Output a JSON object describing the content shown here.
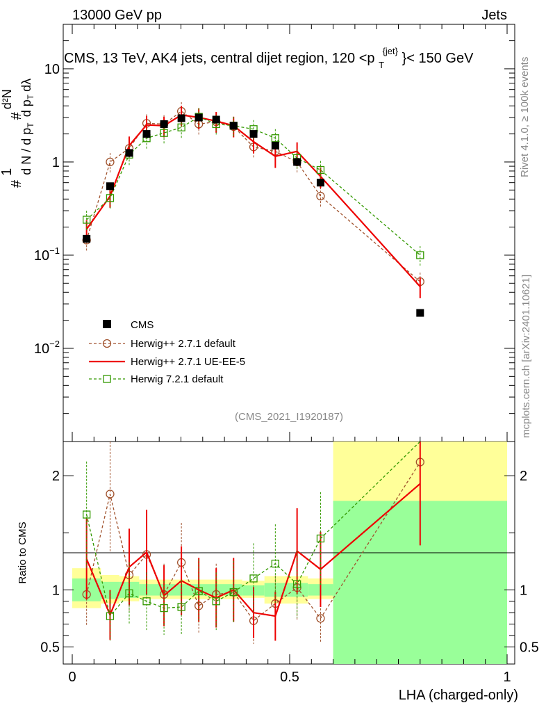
{
  "header": {
    "energy": "13000 GeV pp",
    "category": "Jets"
  },
  "side": {
    "rivet": "Rivet 4.1.0, ≥ 100k events",
    "mcplots": "mcplots.cern.ch [arXiv:2401.10621]"
  },
  "title_main": "CMS, 13 TeV, AK4 jets, central dijet region, 120 <p",
  "title_sub": "T",
  "title_sup": "{jet}",
  "title_tail": "}< 150 GeV",
  "analysis_tag": "(CMS_2021_I1920187)",
  "ylabel_main": "# 1/dN/dpT # d²N/dpT dλ",
  "ylabel_ratio": "Ratio to CMS",
  "xlabel": "LHA (charged-only)",
  "legend": [
    {
      "label": "CMS",
      "color": "#000000"
    },
    {
      "label": "Herwig++ 2.7.1 default",
      "color": "#a0522d"
    },
    {
      "label": "Herwig++ 2.7.1 UE-EE-5",
      "color": "#ee0000"
    },
    {
      "label": "Herwig 7.2.1 default",
      "color": "#339900"
    }
  ],
  "ticks": {
    "main_y": [
      "10",
      "1",
      "10",
      "10"
    ],
    "main_y_exp": [
      "",
      "",
      "−1",
      "−2"
    ],
    "ratio_y": [
      "2",
      "1",
      "0.5"
    ],
    "x": [
      "0",
      "0.5",
      "1"
    ]
  },
  "chart_data": {
    "type": "line",
    "xlabel": "LHA (charged-only)",
    "ylabel": "1/dN/dpT d²N/dpT dλ",
    "xlim": [
      0,
      1
    ],
    "ylim_log": [
      0.001,
      30
    ],
    "ratio_ylim": [
      0.35,
      2.3
    ],
    "x": [
      0.033,
      0.087,
      0.131,
      0.171,
      0.211,
      0.251,
      0.291,
      0.331,
      0.371,
      0.417,
      0.467,
      0.517,
      0.571,
      0.8
    ],
    "bin_edges": [
      0.0,
      0.066,
      0.108,
      0.154,
      0.19,
      0.232,
      0.271,
      0.311,
      0.351,
      0.391,
      0.442,
      0.492,
      0.542,
      0.6,
      1.0
    ],
    "series": [
      {
        "name": "CMS",
        "values": [
          0.15,
          0.55,
          1.25,
          2.0,
          2.55,
          2.95,
          3.0,
          2.85,
          2.45,
          2.0,
          1.5,
          1.0,
          0.6,
          0.024
        ]
      },
      {
        "name": "Herwig++ 2.7.1 default",
        "values": [
          0.145,
          1.0,
          1.4,
          2.6,
          2.55,
          3.5,
          2.55,
          2.7,
          2.4,
          1.45,
          1.3,
          1.0,
          0.43,
          0.052
        ],
        "ratio": [
          0.96,
          1.84,
          1.13,
          1.31,
          0.96,
          1.24,
          0.86,
          0.96,
          0.98,
          0.73,
          0.88,
          1.02,
          0.75,
          2.12
        ]
      },
      {
        "name": "Herwig++ 2.7.1 UE-EE-5",
        "values": [
          0.19,
          0.43,
          1.5,
          2.5,
          2.45,
          3.2,
          3.0,
          2.75,
          2.45,
          1.65,
          1.15,
          1.3,
          0.7,
          0.046
        ],
        "ratio": [
          1.27,
          0.78,
          1.2,
          1.33,
          0.95,
          1.08,
          1.0,
          0.93,
          1.0,
          0.8,
          0.77,
          1.34,
          1.18,
          1.93
        ]
      },
      {
        "name": "Herwig 7.2.1 default",
        "values": [
          0.24,
          0.41,
          1.2,
          1.8,
          2.05,
          2.35,
          3.05,
          2.55,
          2.45,
          2.25,
          1.8,
          1.1,
          0.82,
          0.1
        ],
        "ratio": [
          1.66,
          0.77,
          0.97,
          0.9,
          0.84,
          0.85,
          0.99,
          0.9,
          0.98,
          1.1,
          1.23,
          1.05,
          1.45,
          4.16
        ]
      }
    ],
    "ratio_bands": [
      {
        "x0": 0.0,
        "x1": 0.066,
        "yellow": [
          0.84,
          1.19
        ],
        "green": [
          0.9,
          1.1
        ]
      },
      {
        "x0": 0.066,
        "x1": 0.108,
        "yellow": [
          0.88,
          1.13
        ],
        "green": [
          0.92,
          1.07
        ]
      },
      {
        "x0": 0.108,
        "x1": 0.154,
        "yellow": [
          0.9,
          1.12
        ],
        "green": [
          0.93,
          1.07
        ]
      },
      {
        "x0": 0.154,
        "x1": 0.391,
        "yellow": [
          0.92,
          1.09
        ],
        "green": [
          0.95,
          1.05
        ]
      },
      {
        "x0": 0.391,
        "x1": 0.442,
        "yellow": [
          0.93,
          1.08
        ],
        "green": [
          0.95,
          1.04
        ]
      },
      {
        "x0": 0.442,
        "x1": 0.542,
        "yellow": [
          0.88,
          1.12
        ],
        "green": [
          0.94,
          1.06
        ]
      },
      {
        "x0": 0.542,
        "x1": 0.6,
        "yellow": [
          0.92,
          1.1
        ],
        "green": [
          0.95,
          1.05
        ]
      },
      {
        "x0": 0.6,
        "x1": 1.0,
        "yellow": [
          0.35,
          2.3
        ],
        "green": [
          0.35,
          1.78
        ]
      }
    ]
  }
}
